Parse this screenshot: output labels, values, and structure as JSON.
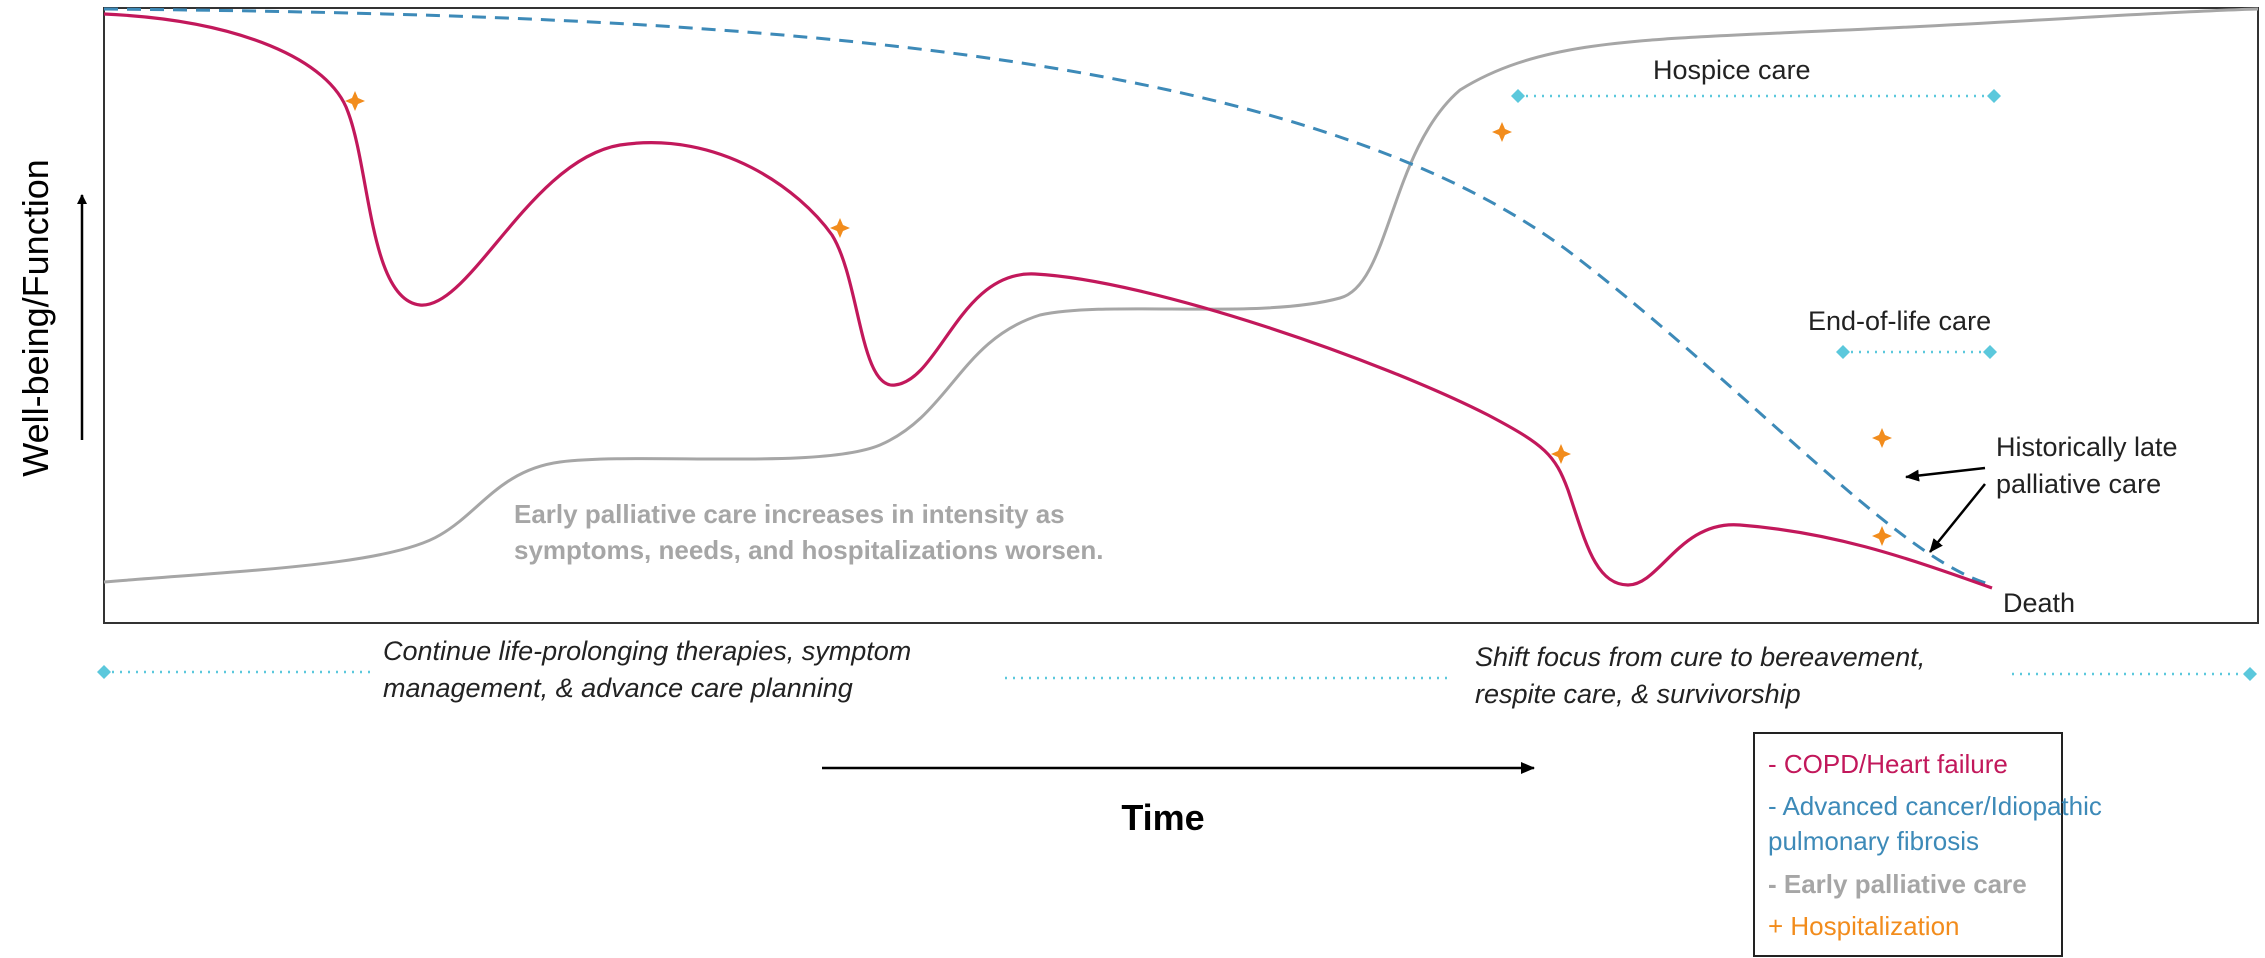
{
  "y_axis_label": "Well-being/Function",
  "x_axis_label": "Time",
  "labels": {
    "hospice_care": "Hospice care",
    "end_of_life_care": "End-of-life care",
    "historically_late_line1": "Historically late",
    "historically_late_line2": "palliative care",
    "death": "Death",
    "early_pc_note_line1": "Early palliative care increases in intensity as",
    "early_pc_note_line2": "symptoms, needs, and hospitalizations worsen."
  },
  "phases": {
    "left_line1": "Continue life-prolonging therapies, symptom",
    "left_line2": "management, & advance care planning",
    "right_line1": "Shift focus from cure to bereavement,",
    "right_line2": "respite care, & survivorship"
  },
  "legend": [
    {
      "text": "- COPD/Heart failure",
      "color": "#c2185b"
    },
    {
      "text": "- Advanced cancer/Idiopathic",
      "color": "#3d8ab8"
    },
    {
      "text": "pulmonary fibrosis",
      "color": "#3d8ab8"
    },
    {
      "text": "- Early palliative care",
      "color": "#a6a6a6"
    },
    {
      "text": "+ Hospitalization",
      "color": "#f28c1c"
    }
  ],
  "colors": {
    "copd": "#c2185b",
    "cancer": "#3d8ab8",
    "early_pc": "#a6a6a6",
    "hospitalization": "#f28c1c",
    "timeline": "#5bc8dc",
    "frame": "#333333"
  }
}
